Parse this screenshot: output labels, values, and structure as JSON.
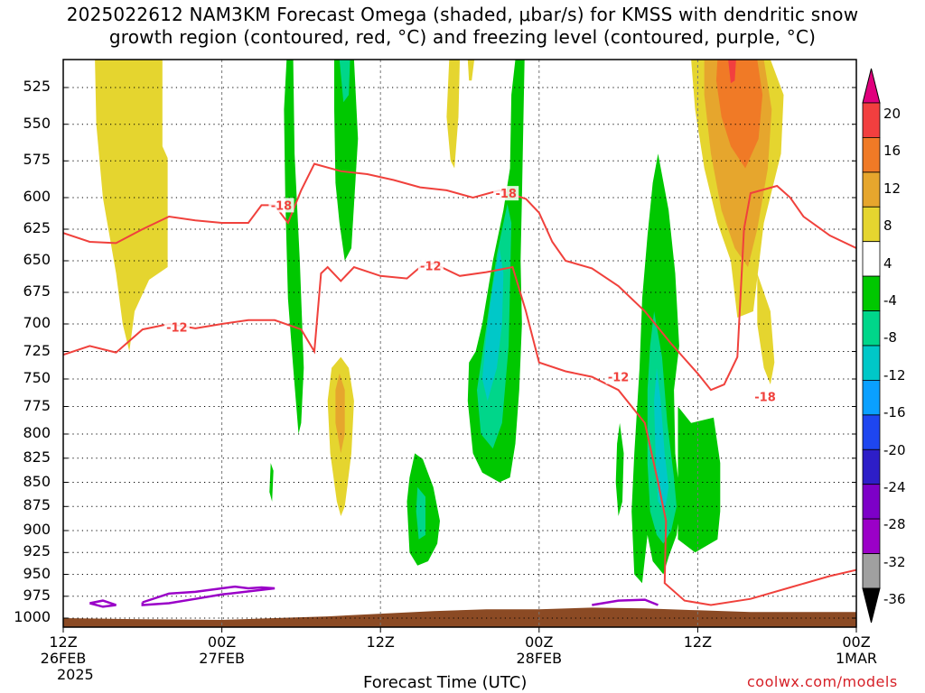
{
  "title": {
    "line1": "2025022612 NAM3KM Forecast Omega (shaded, μbar/s) for KMSS with dendritic snow",
    "line2": "growth region (contoured, red, °C) and freezing level (contoured, purple, °C)"
  },
  "chart_data": {
    "type": "heatmap",
    "xlabel": "Forecast Time (UTC)",
    "xticks": [
      {
        "hour": 0,
        "lines": [
          "12Z",
          "26FEB",
          "2025"
        ]
      },
      {
        "hour": 12,
        "lines": [
          "00Z",
          "27FEB"
        ]
      },
      {
        "hour": 24,
        "lines": [
          "12Z"
        ]
      },
      {
        "hour": 36,
        "lines": [
          "00Z",
          "28FEB"
        ]
      },
      {
        "hour": 48,
        "lines": [
          "12Z"
        ]
      },
      {
        "hour": 60,
        "lines": [
          "00Z",
          "1MAR"
        ]
      }
    ],
    "xlim_hours": [
      0,
      60
    ],
    "y_axis": "pressure (mb), reversed",
    "ylim": [
      1015,
      505
    ],
    "yticks": [
      525,
      550,
      575,
      600,
      625,
      650,
      675,
      700,
      725,
      750,
      775,
      800,
      825,
      850,
      875,
      900,
      925,
      950,
      975,
      1000
    ],
    "grid": true,
    "colorbar": {
      "labels": [
        "20",
        "16",
        "12",
        "8",
        "4",
        "-4",
        "-8",
        "-12",
        "-16",
        "-20",
        "-24",
        "-28",
        "-32",
        "-36"
      ],
      "colors": [
        "#e0007d",
        "#f23f3f",
        "#f07a26",
        "#e6a62d",
        "#e5d52f",
        "#ffffff",
        "#00c800",
        "#00d68a",
        "#00c8c8",
        "#0aa0ff",
        "#1e46f0",
        "#2d1ec8",
        "#7d00c8",
        "#9b00c8",
        "#a0a0a0",
        "#000000"
      ]
    },
    "contours_dgz": [
      {
        "label": "-18",
        "points": [
          [
            0,
            628
          ],
          [
            2,
            635
          ],
          [
            4,
            636
          ],
          [
            6,
            625
          ],
          [
            8,
            615
          ],
          [
            10,
            618
          ],
          [
            12,
            620
          ],
          [
            14,
            620
          ],
          [
            15,
            606
          ],
          [
            16,
            606
          ],
          [
            17,
            620
          ],
          [
            18,
            595
          ],
          [
            19,
            577
          ],
          [
            21,
            582
          ],
          [
            23,
            584
          ],
          [
            25,
            588
          ],
          [
            27,
            593
          ],
          [
            29,
            595
          ],
          [
            31,
            600
          ],
          [
            33,
            595
          ],
          [
            35,
            601
          ],
          [
            36,
            612
          ],
          [
            37,
            635
          ],
          [
            38,
            650
          ],
          [
            40,
            656
          ],
          [
            42,
            670
          ],
          [
            44,
            690
          ],
          [
            46,
            718
          ],
          [
            48,
            745
          ],
          [
            49,
            760
          ],
          [
            50,
            755
          ],
          [
            51,
            730
          ],
          [
            51.5,
            625
          ],
          [
            52,
            597
          ],
          [
            54,
            592
          ],
          [
            55,
            600
          ],
          [
            56,
            615
          ],
          [
            58,
            630
          ],
          [
            60,
            640
          ]
        ]
      },
      {
        "label": "-12",
        "points": [
          [
            0,
            728
          ],
          [
            2,
            720
          ],
          [
            4,
            726
          ],
          [
            6,
            705
          ],
          [
            8,
            700
          ],
          [
            10,
            704
          ],
          [
            12,
            700
          ],
          [
            14,
            697
          ],
          [
            16,
            697
          ],
          [
            18,
            705
          ],
          [
            19,
            725
          ],
          [
            19.5,
            660
          ],
          [
            20,
            655
          ],
          [
            21,
            666
          ],
          [
            22,
            655
          ],
          [
            24,
            662
          ],
          [
            26,
            664
          ],
          [
            27,
            655
          ],
          [
            28,
            652
          ],
          [
            30,
            662
          ],
          [
            32,
            659
          ],
          [
            34,
            655
          ],
          [
            35,
            690
          ],
          [
            36,
            735
          ],
          [
            38,
            743
          ],
          [
            40,
            748
          ],
          [
            42,
            760
          ],
          [
            44,
            790
          ],
          [
            45,
            850
          ],
          [
            45.6,
            890
          ],
          [
            45.5,
            960
          ],
          [
            47,
            980
          ],
          [
            49,
            985
          ],
          [
            52,
            978
          ],
          [
            55,
            965
          ],
          [
            58,
            952
          ],
          [
            60,
            945
          ]
        ]
      }
    ],
    "contours_freezing": [
      {
        "points": [
          [
            2,
            983
          ],
          [
            3,
            980
          ],
          [
            4,
            985
          ],
          [
            3,
            987
          ],
          [
            2,
            983
          ]
        ]
      },
      {
        "points": [
          [
            6,
            982
          ],
          [
            8,
            972
          ],
          [
            10,
            970
          ],
          [
            12,
            966
          ],
          [
            13,
            964
          ],
          [
            14,
            966
          ],
          [
            15,
            965
          ],
          [
            16,
            966
          ],
          [
            12,
            973
          ],
          [
            10,
            978
          ],
          [
            8,
            983
          ],
          [
            6,
            985
          ],
          [
            6,
            982
          ]
        ]
      },
      {
        "points": [
          [
            40,
            985
          ],
          [
            42,
            980
          ],
          [
            44,
            979
          ],
          [
            45,
            985
          ]
        ]
      }
    ]
  }
}
